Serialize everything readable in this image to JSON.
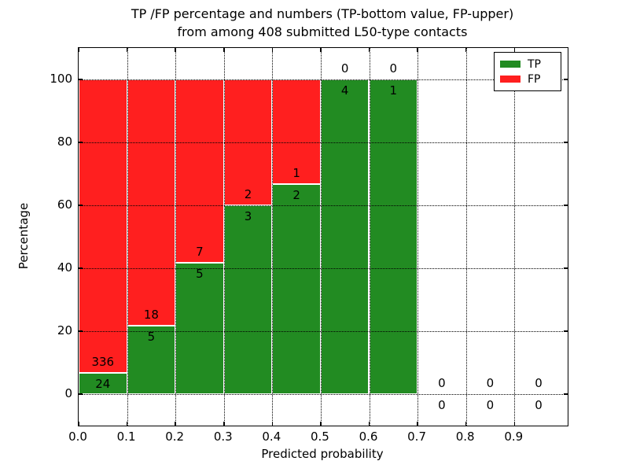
{
  "chart_data": {
    "type": "bar",
    "stacked": true,
    "percentage_stack": true,
    "title_line1": "TP /FP percentage and numbers (TP-bottom value, FP-upper)",
    "title_line2": "from among 408 submitted L50-type contacts",
    "xlabel": "Predicted probability",
    "ylabel": "Percentage",
    "total_contacts": 408,
    "bin_width": 0.1,
    "series": [
      {
        "name": "TP",
        "color": "#228B22"
      },
      {
        "name": "FP",
        "color": "#FF1F1F"
      }
    ],
    "bins": [
      {
        "x_start": 0.0,
        "tp": 24,
        "fp": 336,
        "tp_pct": 6.67
      },
      {
        "x_start": 0.1,
        "tp": 5,
        "fp": 18,
        "tp_pct": 21.74
      },
      {
        "x_start": 0.2,
        "tp": 5,
        "fp": 7,
        "tp_pct": 41.67
      },
      {
        "x_start": 0.3,
        "tp": 3,
        "fp": 2,
        "tp_pct": 60.0
      },
      {
        "x_start": 0.4,
        "tp": 2,
        "fp": 1,
        "tp_pct": 66.67
      },
      {
        "x_start": 0.5,
        "tp": 4,
        "fp": 0,
        "tp_pct": 100.0
      },
      {
        "x_start": 0.6,
        "tp": 1,
        "fp": 0,
        "tp_pct": 100.0
      },
      {
        "x_start": 0.7,
        "tp": 0,
        "fp": 0,
        "tp_pct": null
      },
      {
        "x_start": 0.8,
        "tp": 0,
        "fp": 0,
        "tp_pct": null
      },
      {
        "x_start": 0.9,
        "tp": 0,
        "fp": 0,
        "tp_pct": null
      }
    ],
    "xticks": [
      "0.0",
      "0.1",
      "0.2",
      "0.3",
      "0.4",
      "0.5",
      "0.6",
      "0.7",
      "0.8",
      "0.9"
    ],
    "xtick_values": [
      0.0,
      0.1,
      0.2,
      0.3,
      0.4,
      0.5,
      0.6,
      0.7,
      0.8,
      0.9
    ],
    "yticks": [
      "0",
      "20",
      "40",
      "60",
      "80",
      "100"
    ],
    "ytick_values": [
      0,
      20,
      40,
      60,
      80,
      100
    ],
    "xlim": [
      0,
      1.01
    ],
    "ylim": [
      -10,
      110
    ],
    "grid": true,
    "grid_style": "dotted",
    "legend": {
      "position": "upper right",
      "entries": [
        {
          "label": "TP",
          "color": "#228B22"
        },
        {
          "label": "FP",
          "color": "#FF1F1F"
        }
      ]
    }
  }
}
